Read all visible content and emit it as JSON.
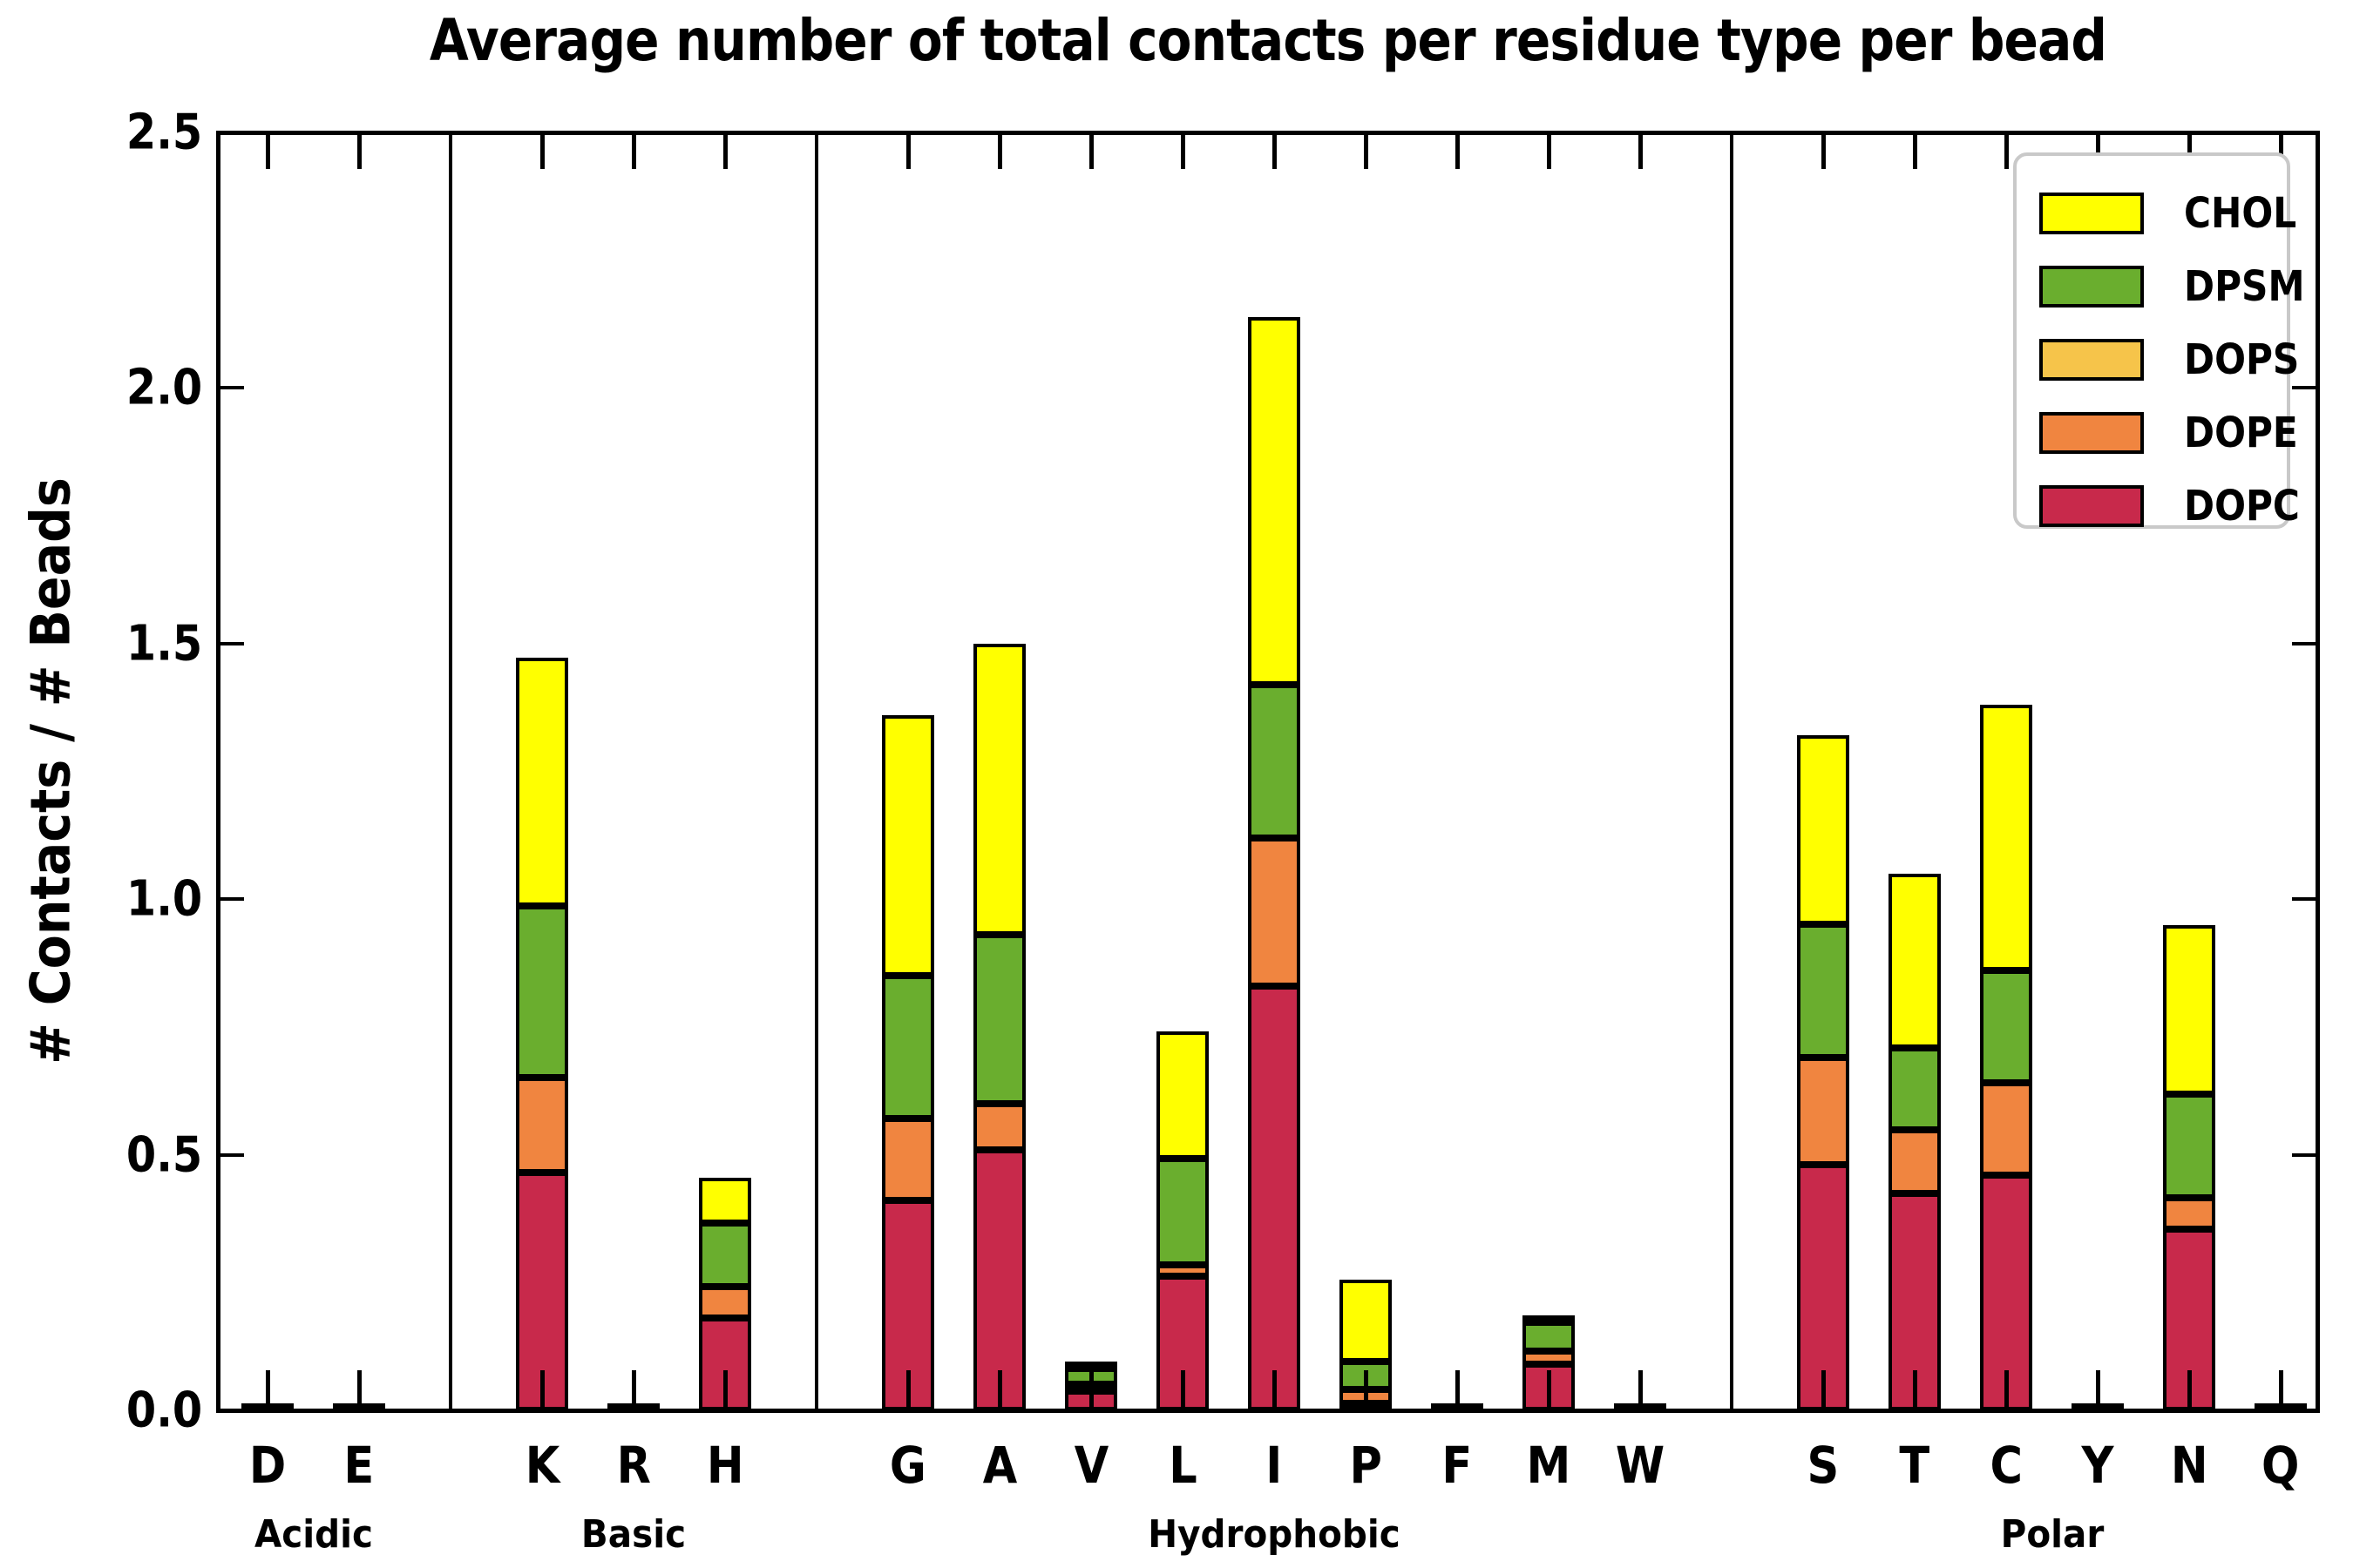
{
  "chart_data": {
    "type": "bar",
    "stacked": true,
    "title": "Average number of total contacts per residue type per bead",
    "ylabel": "# Contacts / # Beads",
    "xlabel": "",
    "ylim": [
      0,
      2.5
    ],
    "yticks": [
      "0.0",
      "0.5",
      "1.0",
      "1.5",
      "2.0",
      "2.5"
    ],
    "grid": false,
    "legend_position": "upper-right",
    "legend_order_top_to_bottom": [
      "CHOL",
      "DPSM",
      "DOPS",
      "DOPE",
      "DOPC"
    ],
    "groups": [
      {
        "label": "Acidic",
        "categories": [
          "D",
          "E"
        ]
      },
      {
        "label": "Basic",
        "categories": [
          "K",
          "R",
          "H"
        ]
      },
      {
        "label": "Hydrophobic",
        "categories": [
          "G",
          "A",
          "V",
          "L",
          "I",
          "P",
          "F",
          "M",
          "W"
        ]
      },
      {
        "label": "Polar",
        "categories": [
          "S",
          "T",
          "C",
          "Y",
          "N",
          "Q"
        ]
      }
    ],
    "categories": [
      "D",
      "E",
      "K",
      "R",
      "H",
      "G",
      "A",
      "V",
      "L",
      "I",
      "P",
      "F",
      "M",
      "W",
      "S",
      "T",
      "C",
      "Y",
      "N",
      "Q"
    ],
    "series": [
      {
        "name": "DOPC",
        "color": "#C8294B",
        "values": [
          0.005,
          0.005,
          0.465,
          0.005,
          0.18,
          0.41,
          0.51,
          0.038,
          0.262,
          0.83,
          0.012,
          0.005,
          0.09,
          0.005,
          0.48,
          0.425,
          0.46,
          0.005,
          0.355,
          0.005
        ]
      },
      {
        "name": "DOPE",
        "color": "#F08540",
        "values": [
          0,
          0,
          0.185,
          0,
          0.062,
          0.16,
          0.09,
          0.006,
          0.022,
          0.29,
          0.028,
          0,
          0.026,
          0,
          0.21,
          0.125,
          0.18,
          0,
          0.062,
          0
        ]
      },
      {
        "name": "DOPS",
        "color": "#F6C44A",
        "values": [
          0,
          0,
          0,
          0,
          0,
          0,
          0,
          0,
          0,
          0,
          0,
          0,
          0,
          0,
          0,
          0,
          0,
          0,
          0,
          0
        ]
      },
      {
        "name": "DPSM",
        "color": "#6AAE2E",
        "values": [
          0,
          0,
          0.335,
          0,
          0.125,
          0.28,
          0.33,
          0.03,
          0.208,
          0.3,
          0.055,
          0,
          0.056,
          0,
          0.26,
          0.16,
          0.22,
          0,
          0.203,
          0
        ]
      },
      {
        "name": "CHOL",
        "color": "#FFFF00",
        "values": [
          0,
          0,
          0.485,
          0,
          0.088,
          0.51,
          0.57,
          0.013,
          0.248,
          0.72,
          0.16,
          0,
          0.012,
          0,
          0.37,
          0.34,
          0.52,
          0,
          0.33,
          0
        ]
      }
    ],
    "totals_per_category": {
      "D": 0.005,
      "E": 0.005,
      "K": 1.47,
      "R": 0.005,
      "H": 0.455,
      "G": 1.36,
      "A": 1.5,
      "V": 0.087,
      "L": 0.74,
      "I": 2.14,
      "P": 0.255,
      "F": 0.005,
      "M": 0.184,
      "W": 0.005,
      "S": 1.32,
      "T": 1.05,
      "C": 1.38,
      "Y": 0.005,
      "N": 0.95,
      "Q": 0.005
    }
  },
  "colors": {
    "axis": "#000000",
    "background": "#ffffff",
    "legend_border": "#c9c9c9"
  }
}
